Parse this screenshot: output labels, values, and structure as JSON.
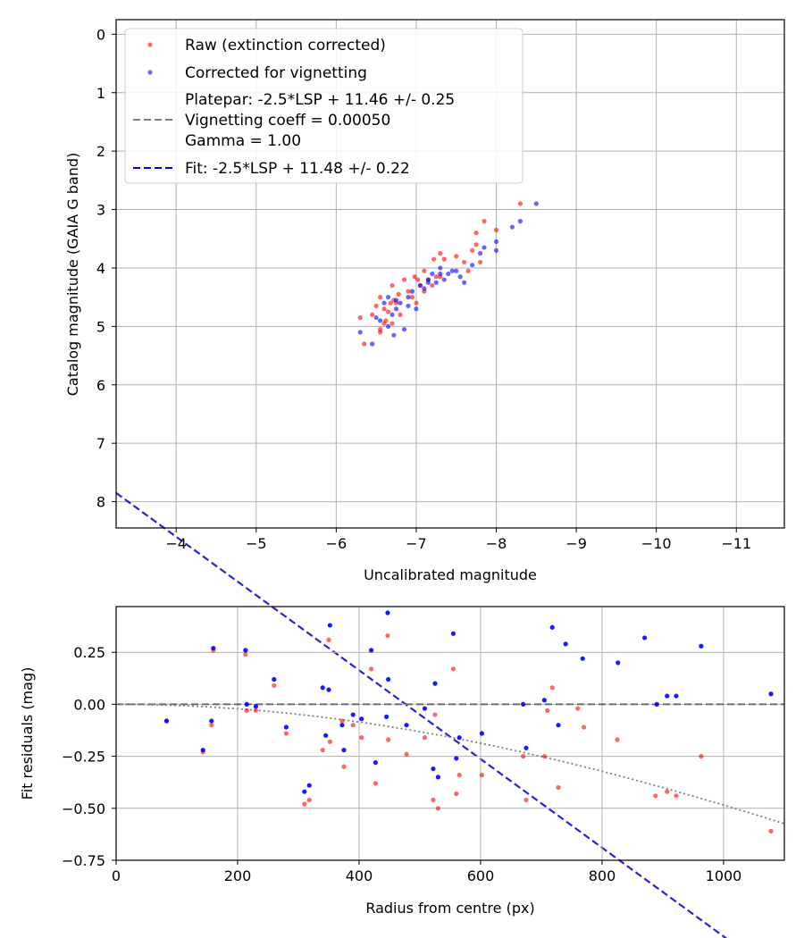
{
  "colors": {
    "raw": "#ff0000",
    "corrected": "#0000ff",
    "fit": "#0000cc",
    "platepar": "#808080",
    "grid": "#b0b0b0"
  },
  "chart_data": [
    {
      "type": "scatter",
      "xlabel": "Uncalibrated magnitude",
      "ylabel": "Catalog magnitude (GAIA G band)",
      "xlim": [
        -3.25,
        -11.6
      ],
      "ylim": [
        8.45,
        -0.25
      ],
      "xticks": [
        -4,
        -5,
        -6,
        -7,
        -8,
        -9,
        -10,
        -11
      ],
      "xtick_labels": [
        "−4",
        "−5",
        "−6",
        "−7",
        "−8",
        "−9",
        "−10",
        "−11"
      ],
      "yticks": [
        0,
        1,
        2,
        3,
        4,
        5,
        6,
        7,
        8
      ],
      "ytick_labels": [
        "0",
        "1",
        "2",
        "3",
        "4",
        "5",
        "6",
        "7",
        "8"
      ],
      "grid": true,
      "legend_position": "top-left",
      "legend": {
        "raw": "Raw (extinction corrected)",
        "corrected": "Corrected for vignetting",
        "platepar_lines": [
          "Platepar: -2.5*LSP + 11.46 +/- 0.25",
          "Vignetting coeff = 0.00050",
          "Gamma = 1.00"
        ],
        "fit": "Fit: -2.5*LSP + 11.48 +/- 0.22"
      },
      "fit_line": {
        "slope": -1,
        "intercept": 4.6,
        "x_range": [
          -3.25,
          -11.6
        ]
      },
      "series": [
        {
          "name": "Raw (extinction corrected)",
          "x": [
            -6.3,
            -6.35,
            -6.45,
            -6.5,
            -6.55,
            -6.55,
            -6.6,
            -6.62,
            -6.65,
            -6.68,
            -6.7,
            -6.72,
            -6.75,
            -6.78,
            -6.8,
            -6.85,
            -6.9,
            -6.95,
            -6.98,
            -7.0,
            -7.02,
            -7.05,
            -7.1,
            -7.15,
            -7.2,
            -7.22,
            -7.25,
            -7.3,
            -7.35,
            -7.5,
            -7.6,
            -7.65,
            -7.7,
            -7.75,
            -7.8,
            -7.85,
            -8.0,
            -8.3,
            -6.55,
            -6.6,
            -6.7,
            -7.1,
            -7.3,
            -7.75
          ],
          "y": [
            4.85,
            5.3,
            4.8,
            4.65,
            4.5,
            5.05,
            4.95,
            4.9,
            4.75,
            4.6,
            4.3,
            4.55,
            4.6,
            4.45,
            4.8,
            4.2,
            4.4,
            4.5,
            4.15,
            4.6,
            4.2,
            4.3,
            4.4,
            4.2,
            4.3,
            3.85,
            4.15,
            3.75,
            3.85,
            3.8,
            3.9,
            4.05,
            3.7,
            3.4,
            3.9,
            3.2,
            3.35,
            2.9,
            5.1,
            4.7,
            4.95,
            4.05,
            4.15,
            3.6
          ]
        },
        {
          "name": "Corrected for vignetting",
          "x": [
            -6.3,
            -6.45,
            -6.5,
            -6.55,
            -6.6,
            -6.65,
            -6.7,
            -6.72,
            -6.75,
            -6.8,
            -6.85,
            -6.9,
            -6.95,
            -7.0,
            -7.05,
            -7.1,
            -7.15,
            -7.2,
            -7.25,
            -7.3,
            -7.35,
            -7.4,
            -7.45,
            -7.55,
            -7.6,
            -7.7,
            -7.8,
            -7.85,
            -8.0,
            -8.2,
            -8.5,
            -8.3,
            -6.65,
            -6.75,
            -6.9,
            -7.15,
            -7.3,
            -7.5,
            -8.0
          ],
          "y": [
            5.1,
            5.3,
            4.85,
            4.9,
            4.6,
            4.5,
            4.8,
            5.15,
            4.7,
            4.6,
            5.05,
            4.65,
            4.4,
            4.7,
            4.3,
            4.35,
            4.2,
            4.1,
            4.25,
            4.0,
            4.2,
            4.1,
            4.05,
            4.15,
            4.25,
            3.95,
            3.75,
            3.65,
            3.55,
            3.3,
            2.9,
            3.2,
            5.0,
            4.55,
            4.5,
            4.25,
            4.1,
            4.05,
            3.7
          ]
        }
      ]
    },
    {
      "type": "scatter",
      "xlabel": "Radius from centre (px)",
      "ylabel": "Fit residuals (mag)",
      "xlim": [
        0,
        1100
      ],
      "ylim": [
        -0.75,
        0.47
      ],
      "xticks": [
        0,
        200,
        400,
        600,
        800,
        1000
      ],
      "xtick_labels": [
        "0",
        "200",
        "400",
        "600",
        "800",
        "1000"
      ],
      "yticks": [
        0.25,
        0.0,
        -0.25,
        -0.5,
        -0.75
      ],
      "ytick_labels": [
        "0.25",
        "0.00",
        "−0.25",
        "−0.50",
        "−0.75"
      ],
      "grid": true,
      "zero_line": 0.0,
      "vignetting_curve": {
        "coeff": 0.0005,
        "shape": "dotted"
      },
      "series": [
        {
          "name": "Raw (extinction corrected)",
          "x": [
            83,
            143,
            157,
            160,
            213,
            215,
            230,
            260,
            280,
            310,
            318,
            340,
            350,
            352,
            372,
            375,
            390,
            404,
            420,
            427,
            447,
            448,
            478,
            508,
            522,
            525,
            530,
            555,
            560,
            565,
            602,
            670,
            675,
            705,
            710,
            718,
            728,
            760,
            770,
            825,
            888,
            907,
            922,
            963,
            1078
          ],
          "y": [
            -0.08,
            -0.23,
            -0.1,
            0.26,
            0.24,
            -0.03,
            -0.03,
            0.09,
            -0.14,
            -0.48,
            -0.46,
            -0.22,
            0.31,
            -0.18,
            -0.08,
            -0.3,
            -0.1,
            -0.16,
            0.17,
            -0.38,
            0.33,
            -0.17,
            -0.24,
            -0.16,
            -0.46,
            -0.05,
            -0.5,
            0.17,
            -0.43,
            -0.34,
            -0.34,
            -0.25,
            -0.46,
            -0.25,
            -0.03,
            0.08,
            -0.4,
            -0.02,
            -0.11,
            -0.17,
            -0.44,
            -0.42,
            -0.44,
            -0.25,
            -0.61
          ]
        },
        {
          "name": "Corrected for vignetting",
          "x": [
            83,
            143,
            157,
            160,
            213,
            215,
            230,
            260,
            280,
            310,
            318,
            340,
            345,
            350,
            352,
            372,
            375,
            390,
            404,
            420,
            427,
            445,
            447,
            448,
            478,
            508,
            522,
            525,
            530,
            555,
            560,
            565,
            602,
            670,
            675,
            705,
            718,
            728,
            740,
            768,
            826,
            870,
            890,
            907,
            922,
            963,
            1078
          ],
          "y": [
            -0.08,
            -0.22,
            -0.08,
            0.27,
            0.26,
            0.0,
            -0.01,
            0.12,
            -0.11,
            -0.42,
            -0.39,
            0.08,
            -0.15,
            0.07,
            0.38,
            -0.1,
            -0.22,
            -0.05,
            -0.07,
            0.26,
            -0.28,
            -0.06,
            0.44,
            0.12,
            -0.1,
            -0.02,
            -0.31,
            0.1,
            -0.35,
            0.34,
            -0.26,
            -0.16,
            -0.14,
            0.0,
            -0.21,
            0.02,
            0.37,
            -0.1,
            0.29,
            0.22,
            0.2,
            0.32,
            0.0,
            0.04,
            0.04,
            0.28,
            0.05
          ]
        }
      ]
    }
  ]
}
